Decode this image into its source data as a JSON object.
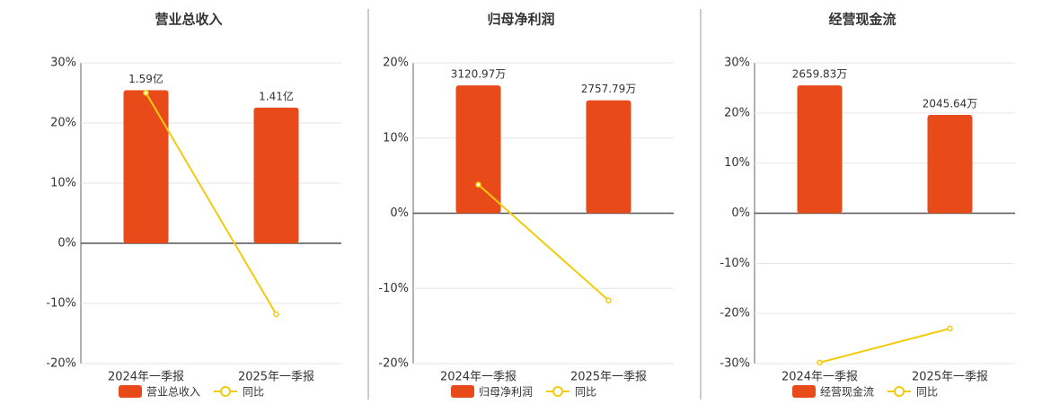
{
  "chart_data": [
    {
      "type": "bar",
      "title": "营业总收入",
      "categories": [
        "2024年一季报",
        "2025年一季报"
      ],
      "series": [
        {
          "name": "营业总收入",
          "color": "#e84a1a",
          "axis": "y2",
          "values": [
            159000000,
            141000000
          ],
          "value_labels": [
            "1.59亿",
            "1.41亿"
          ]
        },
        {
          "name": "同比",
          "type": "line",
          "color": "#f2cc0c",
          "values": [
            25,
            -11.8
          ]
        }
      ],
      "ylim": [
        -20,
        30
      ],
      "y2lim": [
        -125000000,
        187500000
      ],
      "yticks": [
        {
          "value": -20,
          "label": "-20%"
        },
        {
          "value": -10,
          "label": "-10%"
        },
        {
          "value": 0,
          "label": "0%"
        },
        {
          "value": 10,
          "label": "10%"
        },
        {
          "value": 20,
          "label": "20%"
        },
        {
          "value": 30,
          "label": "30%"
        }
      ],
      "grid": true
    },
    {
      "type": "bar",
      "title": "归母净利润",
      "categories": [
        "2024年一季报",
        "2025年一季报"
      ],
      "series": [
        {
          "name": "归母净利润",
          "color": "#e84a1a",
          "axis": "y2",
          "values": [
            31209700,
            27577900
          ],
          "value_labels": [
            "3120.97万",
            "2757.79万"
          ]
        },
        {
          "name": "同比",
          "type": "line",
          "color": "#f2cc0c",
          "values": [
            3.8,
            -11.6
          ]
        }
      ],
      "ylim": [
        -20,
        20
      ],
      "y2lim": [
        -36720000,
        36720000
      ],
      "yticks": [
        {
          "value": -20,
          "label": "-20%"
        },
        {
          "value": -10,
          "label": "-10%"
        },
        {
          "value": 0,
          "label": "0%"
        },
        {
          "value": 10,
          "label": "10%"
        },
        {
          "value": 20,
          "label": "20%"
        }
      ],
      "grid": true
    },
    {
      "type": "bar",
      "title": "经营现金流",
      "categories": [
        "2024年一季报",
        "2025年一季报"
      ],
      "series": [
        {
          "name": "经营现金流",
          "color": "#e84a1a",
          "axis": "y2",
          "values": [
            26598300,
            20456400
          ],
          "value_labels": [
            "2659.83万",
            "2045.64万"
          ]
        },
        {
          "name": "同比",
          "type": "line",
          "color": "#f2cc0c",
          "values": [
            -29.8,
            -23
          ]
        }
      ],
      "ylim": [
        -30,
        30
      ],
      "y2lim": [
        -31290000,
        31290000
      ],
      "yticks": [
        {
          "value": -30,
          "label": "-30%"
        },
        {
          "value": -20,
          "label": "-20%"
        },
        {
          "value": -10,
          "label": "-10%"
        },
        {
          "value": 0,
          "label": "0%"
        },
        {
          "value": 10,
          "label": "10%"
        },
        {
          "value": 20,
          "label": "20%"
        },
        {
          "value": 30,
          "label": "30%"
        }
      ],
      "grid": true
    }
  ]
}
